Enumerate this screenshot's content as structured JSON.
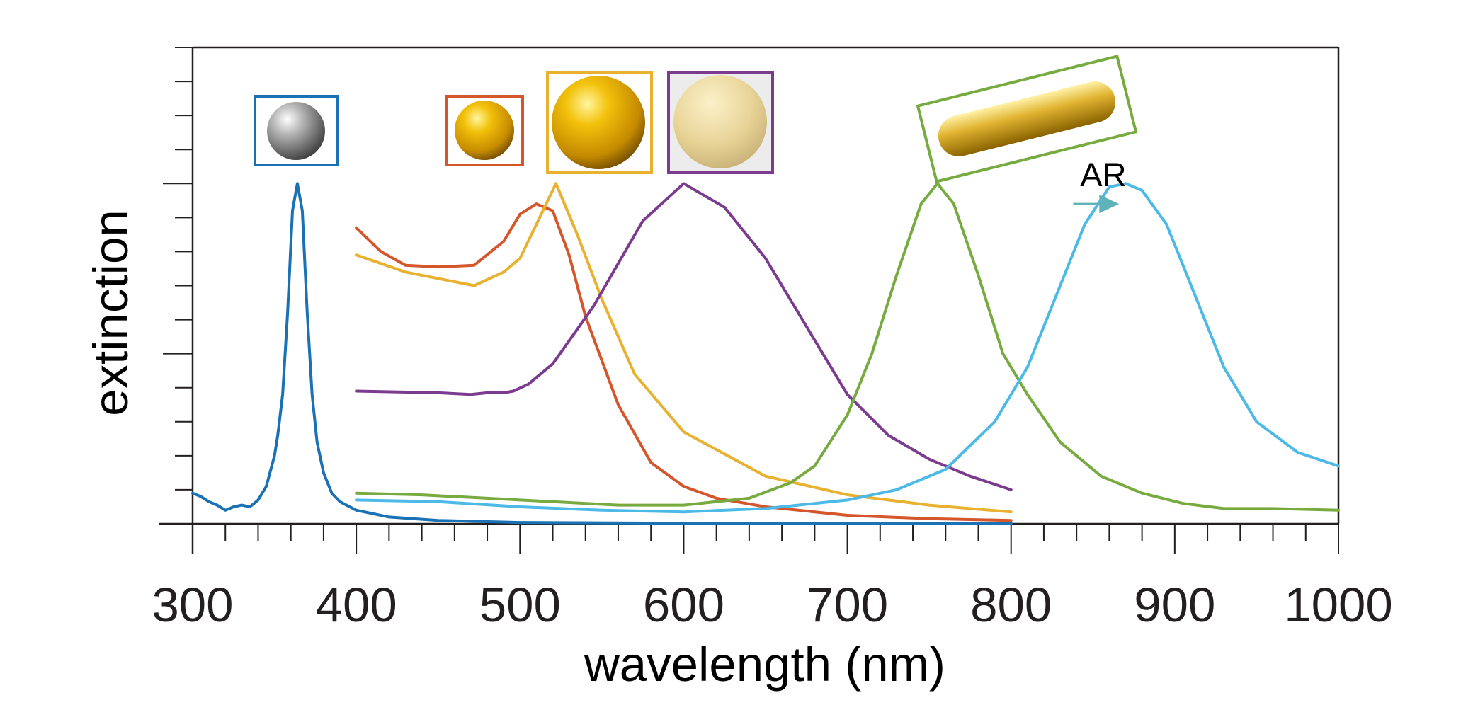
{
  "chart_data": {
    "type": "line",
    "title": "",
    "xlabel": "wavelength (nm)",
    "ylabel": "extinction",
    "xlim": [
      300,
      1000
    ],
    "ylim": [
      0,
      1.4
    ],
    "x_ticks": [
      300,
      400,
      500,
      600,
      700,
      800,
      900,
      1000
    ],
    "x_minor_step": 20,
    "y_minor_step": 0.1,
    "grid": false,
    "legend": "none",
    "annotations": [
      {
        "text": "AR",
        "kind": "arrow-right",
        "from_x": 838,
        "to_x": 866,
        "y": 0.94,
        "color": "#5fb3b8"
      }
    ],
    "insets": [
      {
        "shape": "sphere-silver",
        "frame_color": "#1a72b5",
        "near_series": 0
      },
      {
        "shape": "sphere-gold-small",
        "frame_color": "#d4562a",
        "near_series": 1
      },
      {
        "shape": "sphere-gold-large",
        "frame_color": "#e8b130",
        "near_series": 2
      },
      {
        "shape": "sphere-pale-gold",
        "frame_color": "#7b3b8f",
        "near_series": 3
      },
      {
        "shape": "nanorod-gold",
        "frame_color": "#77ab3f",
        "near_series": 4
      }
    ],
    "series": [
      {
        "color": "#1a72b5",
        "x": [
          300,
          305,
          310,
          315,
          320,
          325,
          330,
          335,
          340,
          345,
          350,
          352,
          355,
          358,
          361,
          364,
          367,
          370,
          373,
          376,
          380,
          385,
          390,
          400,
          420,
          450,
          500,
          600,
          700,
          800
        ],
        "y": [
          0.09,
          0.08,
          0.065,
          0.055,
          0.04,
          0.05,
          0.055,
          0.05,
          0.07,
          0.11,
          0.2,
          0.26,
          0.38,
          0.62,
          0.92,
          1.0,
          0.92,
          0.62,
          0.38,
          0.24,
          0.15,
          0.09,
          0.065,
          0.04,
          0.02,
          0.01,
          0.004,
          0.0015,
          0.001,
          0.001
        ]
      },
      {
        "color": "#d4562a",
        "x": [
          400,
          415,
          430,
          450,
          472,
          490,
          500,
          510,
          520,
          530,
          540,
          560,
          580,
          600,
          620,
          650,
          700,
          750,
          800
        ],
        "y": [
          0.87,
          0.8,
          0.76,
          0.755,
          0.76,
          0.83,
          0.91,
          0.94,
          0.92,
          0.79,
          0.61,
          0.35,
          0.18,
          0.11,
          0.075,
          0.05,
          0.025,
          0.015,
          0.01
        ]
      },
      {
        "color": "#e8b130",
        "x": [
          400,
          430,
          472,
          490,
          500,
          510,
          522,
          535,
          550,
          570,
          600,
          650,
          700,
          750,
          800
        ],
        "y": [
          0.79,
          0.74,
          0.7,
          0.74,
          0.78,
          0.88,
          1.0,
          0.85,
          0.66,
          0.44,
          0.27,
          0.14,
          0.085,
          0.055,
          0.035
        ]
      },
      {
        "color": "#7b3b8f",
        "x": [
          400,
          450,
          470,
          480,
          490,
          496,
          505,
          520,
          545,
          575,
          600,
          625,
          650,
          680,
          700,
          725,
          750,
          775,
          800
        ],
        "y": [
          0.39,
          0.385,
          0.38,
          0.385,
          0.385,
          0.39,
          0.41,
          0.47,
          0.64,
          0.89,
          1.0,
          0.93,
          0.78,
          0.54,
          0.38,
          0.26,
          0.19,
          0.14,
          0.1
        ]
      },
      {
        "color": "#77ab3f",
        "x": [
          400,
          440,
          480,
          520,
          560,
          600,
          640,
          665,
          680,
          700,
          715,
          730,
          745,
          755,
          765,
          780,
          795,
          810,
          830,
          855,
          880,
          905,
          930,
          960,
          1000
        ],
        "y": [
          0.09,
          0.085,
          0.075,
          0.065,
          0.055,
          0.055,
          0.075,
          0.12,
          0.17,
          0.32,
          0.5,
          0.73,
          0.94,
          1.0,
          0.94,
          0.73,
          0.5,
          0.38,
          0.24,
          0.14,
          0.09,
          0.06,
          0.045,
          0.045,
          0.04
        ]
      },
      {
        "color": "#4cb9e7",
        "x": [
          400,
          450,
          500,
          550,
          600,
          650,
          700,
          730,
          760,
          790,
          810,
          830,
          845,
          860,
          870,
          880,
          895,
          910,
          930,
          950,
          975,
          1000
        ],
        "y": [
          0.07,
          0.065,
          0.05,
          0.04,
          0.035,
          0.045,
          0.07,
          0.1,
          0.16,
          0.3,
          0.46,
          0.7,
          0.88,
          0.99,
          1.0,
          0.98,
          0.88,
          0.7,
          0.46,
          0.3,
          0.21,
          0.17
        ]
      }
    ]
  }
}
